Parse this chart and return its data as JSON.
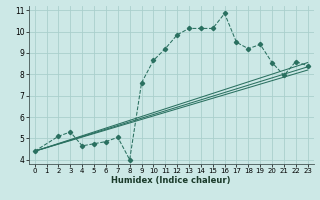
{
  "xlabel": "Humidex (Indice chaleur)",
  "xlim": [
    -0.5,
    23.5
  ],
  "ylim": [
    3.8,
    11.2
  ],
  "xticks": [
    0,
    1,
    2,
    3,
    4,
    5,
    6,
    7,
    8,
    9,
    10,
    11,
    12,
    13,
    14,
    15,
    16,
    17,
    18,
    19,
    20,
    21,
    22,
    23
  ],
  "yticks": [
    4,
    5,
    6,
    7,
    8,
    9,
    10,
    11
  ],
  "bg_color": "#cce8e6",
  "grid_color": "#aacfcc",
  "line_color": "#2a7060",
  "main_line": {
    "x": [
      0,
      2,
      3,
      4,
      5,
      6,
      7,
      8,
      9,
      10,
      11,
      12,
      13,
      14,
      15,
      16,
      17,
      18,
      19,
      20,
      21,
      22,
      23
    ],
    "y": [
      4.4,
      5.1,
      5.3,
      4.65,
      4.75,
      4.85,
      5.05,
      4.0,
      7.6,
      8.65,
      9.2,
      9.85,
      10.15,
      10.15,
      10.15,
      10.85,
      9.5,
      9.2,
      9.4,
      8.55,
      7.95,
      8.6,
      8.4
    ]
  },
  "trend_lines": [
    {
      "x": [
        0,
        23
      ],
      "y": [
        4.4,
        8.55
      ]
    },
    {
      "x": [
        0,
        23
      ],
      "y": [
        4.4,
        8.35
      ]
    },
    {
      "x": [
        0,
        23
      ],
      "y": [
        4.4,
        8.2
      ]
    }
  ]
}
